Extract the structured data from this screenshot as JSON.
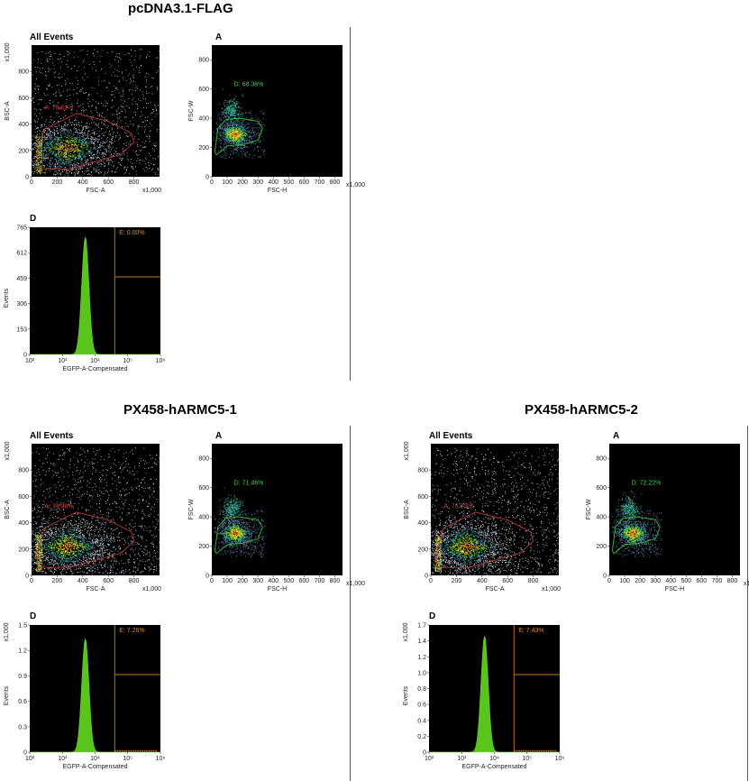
{
  "panels": [
    {
      "title": "pcDNA3.1-FLAG",
      "scatter1": {
        "caption": "All Events",
        "xlabel": "FSC-A",
        "ylabel": "BSC-A",
        "xunit": "x1,000",
        "yunit": "x1,000",
        "xticks": [
          "0",
          "200",
          "400",
          "600",
          "800"
        ],
        "yticks": [
          "0",
          "200",
          "400",
          "600",
          "800"
        ],
        "gate_label": "A: 79.62%",
        "density": 1.0
      },
      "scatter2": {
        "caption": "A",
        "xlabel": "FSC-H",
        "ylabel": "FSC-W",
        "xunit": "x1,000",
        "xticks": [
          "0",
          "100",
          "200",
          "300",
          "400",
          "500",
          "600",
          "700",
          "800"
        ],
        "yticks": [
          "0",
          "200",
          "400",
          "600",
          "800"
        ],
        "gate_label": "D: 68.36%"
      },
      "histogram": {
        "caption": "D",
        "xlabel": "EGFP-A-Compensated",
        "ylabel": "Events",
        "yunit": "",
        "yticks": [
          "0",
          "153",
          "306",
          "459",
          "612",
          "765"
        ],
        "xticks": [
          "10²",
          "10³",
          "10⁴",
          "10⁵",
          "10⁶"
        ],
        "gate_label": "E: 0.00%",
        "peak": 0.92
      }
    },
    {
      "title": "PX458-hARMC5-1",
      "scatter1": {
        "caption": "All Events",
        "xlabel": "FSC-A",
        "ylabel": "BSC-A",
        "xunit": "x1,000",
        "yunit": "x1,000",
        "xticks": [
          "0",
          "200",
          "400",
          "600",
          "800"
        ],
        "yticks": [
          "0",
          "200",
          "400",
          "600",
          "800"
        ],
        "gate_label": "A: 79.98%",
        "density": 1.2
      },
      "scatter2": {
        "caption": "A",
        "xlabel": "FSC-H",
        "ylabel": "FSC-W",
        "xunit": "x1,000",
        "xticks": [
          "0",
          "100",
          "200",
          "300",
          "400",
          "500",
          "600",
          "700",
          "800"
        ],
        "yticks": [
          "0",
          "200",
          "400",
          "600",
          "800"
        ],
        "gate_label": "D: 71.46%"
      },
      "histogram": {
        "caption": "D",
        "xlabel": "EGFP-A-Compensated",
        "ylabel": "Events",
        "yunit": "x1,000",
        "yticks": [
          "0",
          "0.3",
          "0.6",
          "0.9",
          "1.2",
          "1.5"
        ],
        "xticks": [
          "10²",
          "10³",
          "10⁴",
          "10⁵",
          "10⁶"
        ],
        "gate_label": "E: 7.26%",
        "peak": 0.89
      }
    },
    {
      "title": "PX458-hARMC5-2",
      "scatter1": {
        "caption": "All Events",
        "xlabel": "FSC-A",
        "ylabel": "BSC-A",
        "xunit": "x1,000",
        "yunit": "x1,000",
        "xticks": [
          "0",
          "200",
          "400",
          "600",
          "800"
        ],
        "yticks": [
          "0",
          "200",
          "400",
          "600",
          "800"
        ],
        "gate_label": "A: 75.80%",
        "density": 1.2
      },
      "scatter2": {
        "caption": "A",
        "xlabel": "FSC-H",
        "ylabel": "FSC-W",
        "xunit": "x1,000",
        "xticks": [
          "0",
          "100",
          "200",
          "300",
          "400",
          "500",
          "600",
          "700",
          "800"
        ],
        "yticks": [
          "0",
          "200",
          "400",
          "600",
          "800"
        ],
        "gate_label": "D: 72.22%"
      },
      "histogram": {
        "caption": "D",
        "xlabel": "EGFP-A-Compensated",
        "ylabel": "Events",
        "yunit": "x1,000",
        "yticks": [
          "0",
          "0.2",
          "0.4",
          "0.6",
          "0.8",
          "1.0",
          "1.2",
          "1.4",
          "1.7"
        ],
        "xticks": [
          "10²",
          "10³",
          "10⁴",
          "10⁵",
          "10⁶"
        ],
        "gate_label": "E: 7.43%",
        "peak": 0.91
      }
    }
  ],
  "colors": {
    "plot_bg": "#000000",
    "gate_scatter1": "#b83a3a",
    "gate_scatter2": "#3dbb3d",
    "gate_hist": "#c7782a",
    "hist_fill": "#59c41c",
    "label_green": "#4fd04f",
    "label_orange": "#e08a2a",
    "label_red": "#d04040"
  },
  "chart_data": [
    {
      "type": "scatter",
      "panel": "pcDNA3.1-FLAG",
      "title": "All Events",
      "xlabel": "FSC-A",
      "ylabel": "BSC-A",
      "xlim": [
        0,
        1000
      ],
      "ylim": [
        0,
        1000
      ],
      "gates": [
        {
          "name": "A",
          "percent": 79.62
        }
      ]
    },
    {
      "type": "scatter",
      "panel": "pcDNA3.1-FLAG",
      "title": "A",
      "xlabel": "FSC-H",
      "ylabel": "FSC-W",
      "xlim": [
        0,
        850
      ],
      "ylim": [
        0,
        900
      ],
      "gates": [
        {
          "name": "D",
          "percent": 68.36
        }
      ]
    },
    {
      "type": "bar",
      "panel": "pcDNA3.1-FLAG",
      "title": "D",
      "xlabel": "EGFP-A-Compensated",
      "ylabel": "Events",
      "xscale": "log",
      "xlim": [
        100,
        1000000
      ],
      "ylim": [
        0,
        765
      ],
      "peak_x": 5000,
      "peak_y": 705,
      "gates": [
        {
          "name": "E",
          "percent": 0.0
        }
      ]
    },
    {
      "type": "scatter",
      "panel": "PX458-hARMC5-1",
      "title": "All Events",
      "xlabel": "FSC-A",
      "ylabel": "BSC-A",
      "xlim": [
        0,
        1000
      ],
      "ylim": [
        0,
        1000
      ],
      "gates": [
        {
          "name": "A",
          "percent": 79.98
        }
      ]
    },
    {
      "type": "scatter",
      "panel": "PX458-hARMC5-1",
      "title": "A",
      "xlabel": "FSC-H",
      "ylabel": "FSC-W",
      "xlim": [
        0,
        850
      ],
      "ylim": [
        0,
        900
      ],
      "gates": [
        {
          "name": "D",
          "percent": 71.46
        }
      ]
    },
    {
      "type": "bar",
      "panel": "PX458-hARMC5-1",
      "title": "D",
      "xlabel": "EGFP-A-Compensated",
      "ylabel": "Events",
      "xscale": "log",
      "xlim": [
        100,
        1000000
      ],
      "ylim": [
        0,
        1.5
      ],
      "peak_x": 5000,
      "peak_y": 1.34,
      "gates": [
        {
          "name": "E",
          "percent": 7.26
        }
      ]
    },
    {
      "type": "scatter",
      "panel": "PX458-hARMC5-2",
      "title": "All Events",
      "xlabel": "FSC-A",
      "ylabel": "BSC-A",
      "xlim": [
        0,
        1000
      ],
      "ylim": [
        0,
        1000
      ],
      "gates": [
        {
          "name": "A",
          "percent": 75.8
        }
      ]
    },
    {
      "type": "scatter",
      "panel": "PX458-hARMC5-2",
      "title": "A",
      "xlabel": "FSC-H",
      "ylabel": "FSC-W",
      "xlim": [
        0,
        850
      ],
      "ylim": [
        0,
        900
      ],
      "gates": [
        {
          "name": "D",
          "percent": 72.22
        }
      ]
    },
    {
      "type": "bar",
      "panel": "PX458-hARMC5-2",
      "title": "D",
      "xlabel": "EGFP-A-Compensated",
      "ylabel": "Events",
      "xscale": "log",
      "xlim": [
        100,
        1000000
      ],
      "ylim": [
        0,
        1.7
      ],
      "peak_x": 5000,
      "peak_y": 1.55,
      "gates": [
        {
          "name": "E",
          "percent": 7.43
        }
      ]
    }
  ]
}
